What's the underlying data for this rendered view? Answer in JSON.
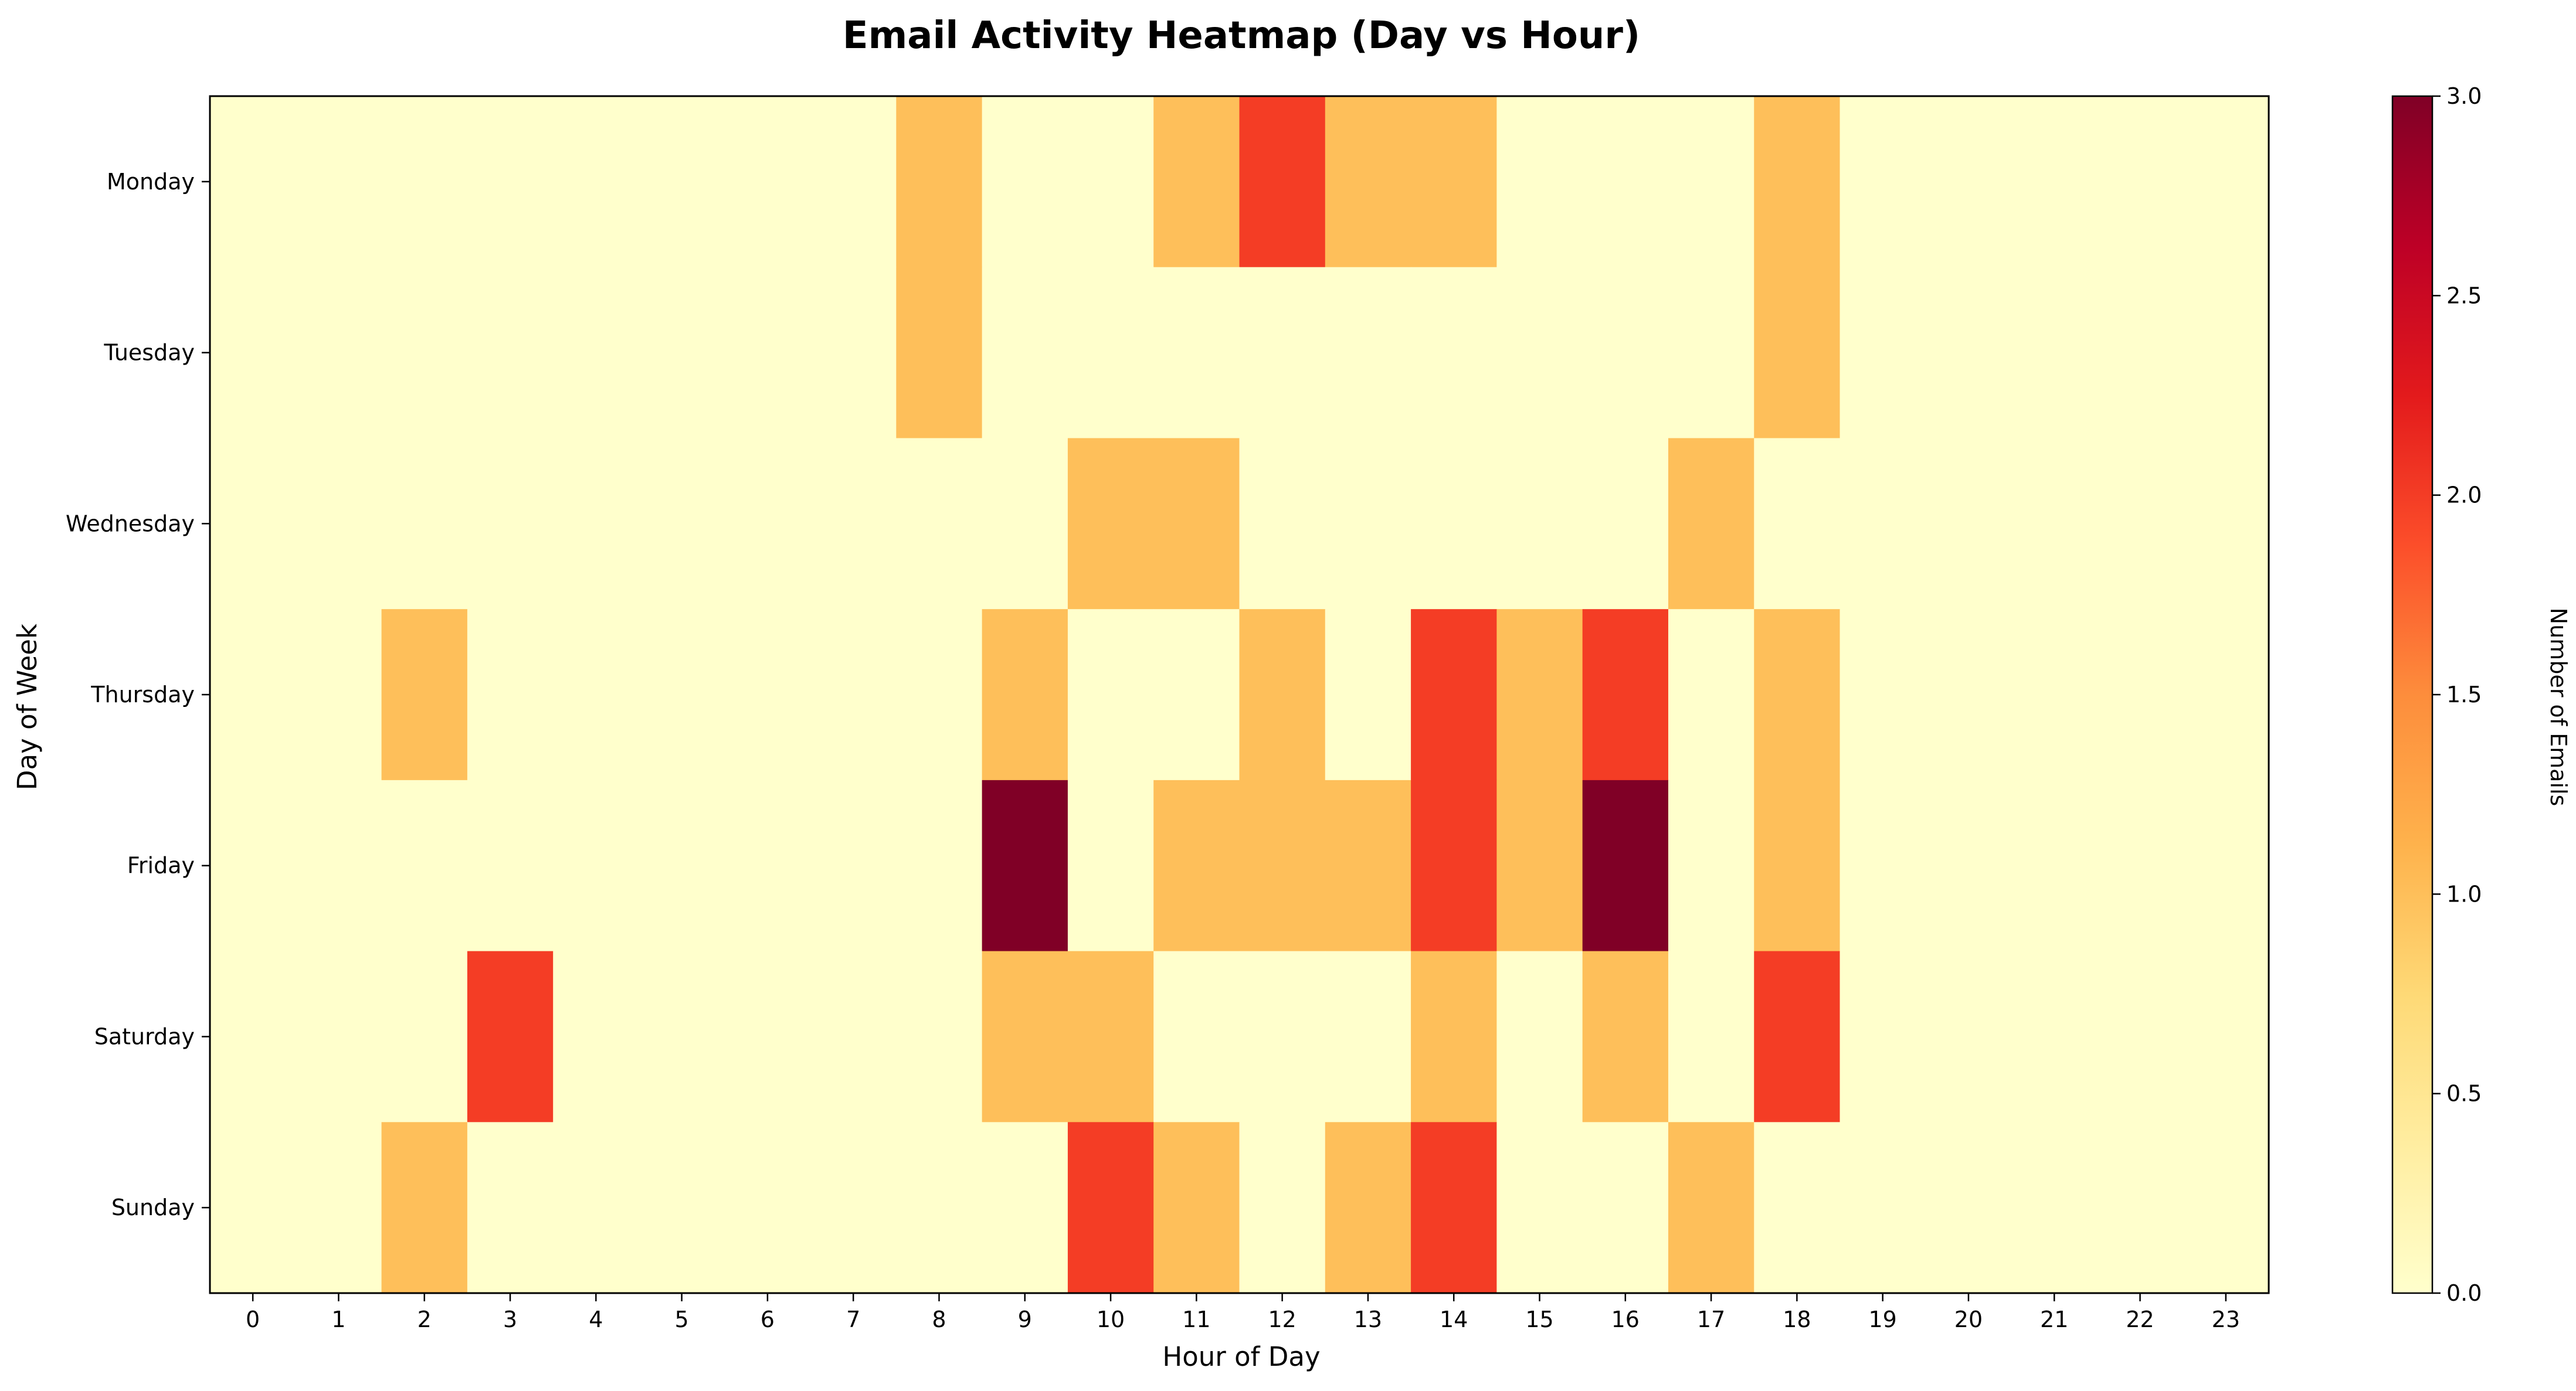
{
  "chart_data": {
    "type": "heatmap",
    "title": "Email Activity Heatmap (Day vs Hour)",
    "xlabel": "Hour of Day",
    "ylabel": "Day of Week",
    "x_categories": [
      "0",
      "1",
      "2",
      "3",
      "4",
      "5",
      "6",
      "7",
      "8",
      "9",
      "10",
      "11",
      "12",
      "13",
      "14",
      "15",
      "16",
      "17",
      "18",
      "19",
      "20",
      "21",
      "22",
      "23"
    ],
    "y_categories": [
      "Monday",
      "Tuesday",
      "Wednesday",
      "Thursday",
      "Friday",
      "Saturday",
      "Sunday"
    ],
    "values": [
      [
        0,
        0,
        0,
        0,
        0,
        0,
        0,
        0,
        1,
        0,
        0,
        1,
        2,
        1,
        1,
        0,
        0,
        0,
        1,
        0,
        0,
        0,
        0,
        0
      ],
      [
        0,
        0,
        0,
        0,
        0,
        0,
        0,
        0,
        1,
        0,
        0,
        0,
        0,
        0,
        0,
        0,
        0,
        0,
        1,
        0,
        0,
        0,
        0,
        0
      ],
      [
        0,
        0,
        0,
        0,
        0,
        0,
        0,
        0,
        0,
        0,
        1,
        1,
        0,
        0,
        0,
        0,
        0,
        1,
        0,
        0,
        0,
        0,
        0,
        0
      ],
      [
        0,
        0,
        1,
        0,
        0,
        0,
        0,
        0,
        0,
        1,
        0,
        0,
        1,
        0,
        2,
        1,
        2,
        0,
        1,
        0,
        0,
        0,
        0,
        0
      ],
      [
        0,
        0,
        0,
        0,
        0,
        0,
        0,
        0,
        0,
        3,
        0,
        1,
        1,
        1,
        2,
        1,
        3,
        0,
        1,
        0,
        0,
        0,
        0,
        0
      ],
      [
        0,
        0,
        0,
        2,
        0,
        0,
        0,
        0,
        0,
        1,
        1,
        0,
        0,
        0,
        1,
        0,
        1,
        0,
        2,
        0,
        0,
        0,
        0,
        0
      ],
      [
        0,
        0,
        1,
        0,
        0,
        0,
        0,
        0,
        0,
        0,
        2,
        1,
        0,
        1,
        2,
        0,
        0,
        1,
        0,
        0,
        0,
        0,
        0,
        0
      ]
    ],
    "colorbar": {
      "label": "Number of Emails",
      "range": [
        0,
        3
      ],
      "ticks": [
        "0.0",
        "0.5",
        "1.0",
        "1.5",
        "2.0",
        "2.5",
        "3.0"
      ],
      "colormap": "YlOrRd",
      "color_stops": [
        "#ffffcc",
        "#ffeda0",
        "#fed976",
        "#feb24c",
        "#fd8d3c",
        "#fc4e2a",
        "#e31a1c",
        "#bd0026",
        "#800026"
      ]
    },
    "grid": false
  }
}
